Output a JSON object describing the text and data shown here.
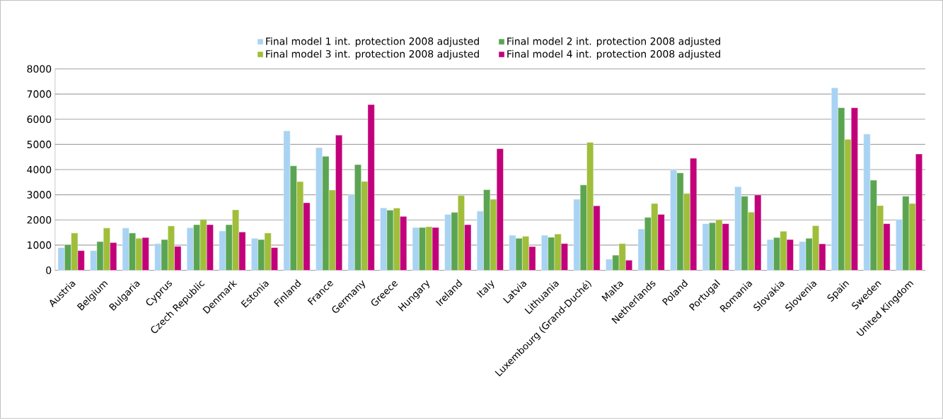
{
  "chart_data": {
    "type": "bar",
    "categories": [
      "Austria",
      "Belgium",
      "Bulgaria",
      "Cyprus",
      "Czech Republic",
      "Denmark",
      "Estonia",
      "Finland",
      "France",
      "Germany",
      "Greece",
      "Hungary",
      "Ireland",
      "Italy",
      "Latvia",
      "Lithuania",
      "Luxembourg (Grand-Duché)",
      "Malta",
      "Netherlands",
      "Poland",
      "Portugal",
      "Romania",
      "Slovakia",
      "Slovenia",
      "Spain",
      "Sweden",
      "United Kingdom"
    ],
    "series": [
      {
        "name": "Final model 1 int. protection 2008 adjusted",
        "color": "#a9d3f2",
        "values": [
          900,
          780,
          1680,
          1060,
          1690,
          1560,
          1270,
          5540,
          4870,
          3000,
          2480,
          1700,
          2220,
          2350,
          1390,
          1390,
          2820,
          440,
          1640,
          3990,
          1850,
          3320,
          1220,
          1140,
          7250,
          5410,
          2020
        ]
      },
      {
        "name": "Final model 2 int. protection 2008 adjusted",
        "color": "#5ba552",
        "values": [
          1020,
          1140,
          1480,
          1220,
          1810,
          1810,
          1220,
          4150,
          4530,
          4200,
          2390,
          1700,
          2300,
          3200,
          1270,
          1310,
          3390,
          600,
          2100,
          3870,
          1890,
          2940,
          1300,
          1270,
          6460,
          3580,
          2940
        ]
      },
      {
        "name": "Final model 3 int. protection 2008 adjusted",
        "color": "#a0be3a",
        "values": [
          1480,
          1680,
          1270,
          1760,
          2020,
          2400,
          1480,
          3520,
          3190,
          3530,
          2470,
          1730,
          2970,
          2820,
          1350,
          1440,
          5080,
          1060,
          2650,
          3050,
          2010,
          2310,
          1550,
          1770,
          5200,
          2570,
          2650
        ]
      },
      {
        "name": "Final model 4 int. protection 2008 adjusted",
        "color": "#c2007a",
        "values": [
          780,
          1100,
          1300,
          950,
          1810,
          1520,
          900,
          2680,
          5370,
          6580,
          2140,
          1700,
          1810,
          4830,
          940,
          1060,
          2560,
          400,
          2220,
          4450,
          1850,
          2990,
          1220,
          1050,
          6460,
          1850,
          4620
        ]
      }
    ],
    "ylim": [
      0,
      8000
    ],
    "yticks": [
      0,
      1000,
      2000,
      3000,
      4000,
      5000,
      6000,
      7000,
      8000
    ],
    "grid": "y",
    "legend": "top"
  }
}
